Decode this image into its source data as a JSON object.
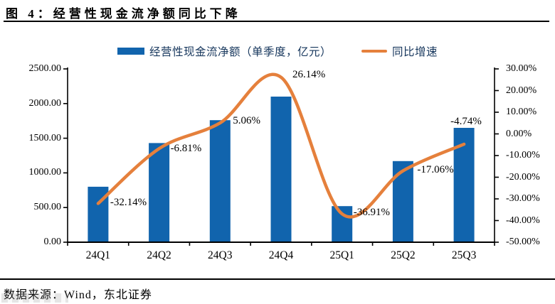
{
  "header": {
    "title": "图 4：经营性现金流净额同比下降"
  },
  "legend": {
    "bar_label": "经营性现金流净额（单季度，亿元）",
    "line_label": "同比增速"
  },
  "colors": {
    "bar": "#1164AD",
    "line": "#E5803C",
    "legend_text": "#17375D",
    "axis": "#000000"
  },
  "chart_data": {
    "type": "bar+line",
    "title": "图 4：经营性现金流净额同比下降",
    "categories": [
      "24Q1",
      "24Q2",
      "24Q3",
      "24Q4",
      "25Q1",
      "25Q2",
      "25Q3"
    ],
    "series": [
      {
        "name": "经营性现金流净额（单季度，亿元）",
        "type": "bar",
        "axis": "left",
        "values": [
          800,
          1430,
          1760,
          2100,
          520,
          1170,
          1650
        ]
      },
      {
        "name": "同比增速",
        "type": "line",
        "axis": "right",
        "values": [
          -32.14,
          -6.81,
          5.06,
          26.14,
          -36.91,
          -17.06,
          -4.74
        ],
        "point_labels": [
          "-32.14%",
          "-6.81%",
          "5.06%",
          "26.14%",
          "-36.91%",
          "-17.06%",
          "-4.74%"
        ]
      }
    ],
    "left_axis": {
      "min": 0,
      "max": 2500,
      "tick_step": 500,
      "tick_labels": [
        "0.00",
        "500.00",
        "1000.00",
        "1500.00",
        "2000.00",
        "2500.00"
      ]
    },
    "right_axis": {
      "min": -50,
      "max": 30,
      "tick_step": 10,
      "tick_labels": [
        "30.00%",
        "20.00%",
        "10.00%",
        "0.00%",
        "-10.00%",
        "-20.00%",
        "-30.00%",
        "-40.00%",
        "-50.00%"
      ]
    },
    "grid": false,
    "legend_position": "top"
  },
  "footer": {
    "source": "数据来源：Wind，东北证券"
  }
}
